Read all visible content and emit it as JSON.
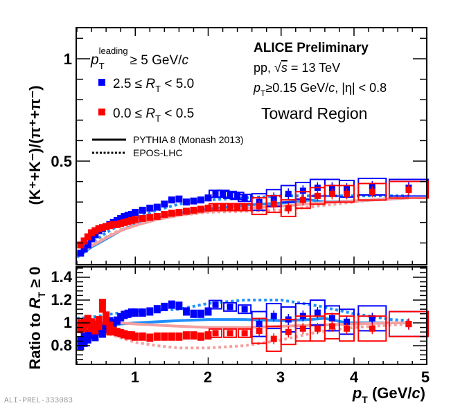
{
  "chart_data": [
    {
      "type": "scatter",
      "panel": "main",
      "xlabel": "p_T (GeV/c)",
      "ylabel": "(K⁺+K⁻)/(π⁺+π⁻)",
      "xlim": [
        0.2,
        5
      ],
      "ylim": [
        0,
        1.15
      ],
      "yticks": [
        0.5,
        1
      ],
      "ytick_labels": [
        "0.5",
        "1"
      ],
      "series": [
        {
          "name": "2.5 ≤ R_T < 5.0",
          "color": "#0000ff",
          "marker": "square",
          "x": [
            0.25,
            0.3,
            0.35,
            0.4,
            0.45,
            0.5,
            0.55,
            0.6,
            0.65,
            0.7,
            0.75,
            0.8,
            0.85,
            0.9,
            0.95,
            1.0,
            1.1,
            1.2,
            1.3,
            1.4,
            1.5,
            1.6,
            1.7,
            1.8,
            1.9,
            2.0,
            2.1,
            2.2,
            2.3,
            2.4,
            2.5,
            2.7,
            2.9,
            3.1,
            3.3,
            3.5,
            3.7,
            3.9,
            4.25,
            4.75
          ],
          "y": [
            0.05,
            0.07,
            0.09,
            0.12,
            0.14,
            0.16,
            0.17,
            0.18,
            0.19,
            0.2,
            0.21,
            0.22,
            0.23,
            0.235,
            0.24,
            0.25,
            0.26,
            0.27,
            0.275,
            0.29,
            0.31,
            0.315,
            0.3,
            0.305,
            0.31,
            0.32,
            0.34,
            0.34,
            0.335,
            0.33,
            0.32,
            0.3,
            0.32,
            0.34,
            0.355,
            0.37,
            0.37,
            0.365,
            0.375,
            0.37
          ]
        },
        {
          "name": "0.0 ≤ R_T < 0.5",
          "color": "#ff0000",
          "marker": "square",
          "x": [
            0.25,
            0.3,
            0.35,
            0.4,
            0.45,
            0.5,
            0.55,
            0.6,
            0.65,
            0.7,
            0.75,
            0.8,
            0.85,
            0.9,
            0.95,
            1.0,
            1.1,
            1.2,
            1.3,
            1.4,
            1.5,
            1.6,
            1.7,
            1.8,
            1.9,
            2.0,
            2.1,
            2.2,
            2.3,
            2.4,
            2.5,
            2.7,
            2.9,
            3.1,
            3.3,
            3.5,
            3.7,
            3.9,
            4.25,
            4.75
          ],
          "y": [
            0.09,
            0.11,
            0.13,
            0.15,
            0.16,
            0.17,
            0.175,
            0.18,
            0.185,
            0.19,
            0.19,
            0.195,
            0.2,
            0.205,
            0.21,
            0.215,
            0.22,
            0.225,
            0.23,
            0.24,
            0.245,
            0.25,
            0.255,
            0.26,
            0.265,
            0.27,
            0.275,
            0.275,
            0.275,
            0.275,
            0.275,
            0.28,
            0.29,
            0.27,
            0.31,
            0.33,
            0.34,
            0.34,
            0.35,
            0.36
          ]
        },
        {
          "name": "PYTHIA 8 (Monash 2013), 2.5 ≤ R_T < 5.0",
          "color": "#1e90ff",
          "style": "solid",
          "x": [
            0.2,
            0.4,
            0.6,
            0.8,
            1.0,
            1.3,
            1.6,
            2.0,
            2.5,
            3.0,
            3.4,
            3.6,
            4.0,
            4.5,
            4.75
          ],
          "y": [
            0.03,
            0.08,
            0.12,
            0.16,
            0.19,
            0.22,
            0.245,
            0.265,
            0.285,
            0.295,
            0.31,
            0.3,
            0.305,
            0.315,
            0.32
          ]
        },
        {
          "name": "PYTHIA 8 (Monash 2013), 0.0 ≤ R_T < 0.5",
          "color": "#f4a0a0",
          "style": "solid",
          "x": [
            0.2,
            0.4,
            0.6,
            0.8,
            1.0,
            1.3,
            1.6,
            2.0,
            2.5,
            3.0,
            3.5,
            4.0,
            4.5,
            4.75
          ],
          "y": [
            0.035,
            0.085,
            0.125,
            0.16,
            0.185,
            0.215,
            0.235,
            0.255,
            0.27,
            0.28,
            0.295,
            0.305,
            0.315,
            0.32
          ]
        },
        {
          "name": "EPOS-LHC, 2.5 ≤ R_T < 5.0",
          "color": "#1e90ff",
          "style": "dotted",
          "x": [
            0.2,
            0.4,
            0.6,
            0.8,
            1.0,
            1.3,
            1.6,
            2.0,
            2.5,
            3.0,
            3.5,
            4.0,
            4.5,
            4.75
          ],
          "y": [
            0.04,
            0.1,
            0.15,
            0.19,
            0.22,
            0.26,
            0.29,
            0.31,
            0.32,
            0.33,
            0.33,
            0.33,
            0.33,
            0.33
          ]
        },
        {
          "name": "EPOS-LHC, 0.0 ≤ R_T < 0.5",
          "color": "#f4a0a0",
          "style": "dotted",
          "x": [
            0.2,
            0.4,
            0.6,
            0.8,
            1.0,
            1.3,
            1.6,
            2.0,
            2.5,
            3.0,
            3.5,
            4.0,
            4.5,
            4.75
          ],
          "y": [
            0.04,
            0.09,
            0.13,
            0.165,
            0.19,
            0.215,
            0.235,
            0.25,
            0.255,
            0.26,
            0.28,
            0.3,
            0.32,
            0.33
          ]
        }
      ]
    },
    {
      "type": "scatter",
      "panel": "ratio",
      "xlabel": "p_T (GeV/c)",
      "ylabel": "Ratio to R_T ≥ 0",
      "xlim": [
        0.2,
        5
      ],
      "ylim": [
        0.63,
        1.5
      ],
      "xticks": [
        1,
        2,
        3,
        4,
        5
      ],
      "xtick_labels": [
        "1",
        "2",
        "3",
        "4",
        "5"
      ],
      "yticks": [
        0.8,
        1,
        1.2,
        1.4
      ],
      "ytick_labels": [
        "0.8",
        "1",
        "1.2",
        "1.4"
      ],
      "series": [
        {
          "name": "2.5 ≤ R_T < 5.0",
          "color": "#0000ff",
          "marker": "square",
          "x": [
            0.25,
            0.3,
            0.35,
            0.4,
            0.45,
            0.5,
            0.55,
            0.6,
            0.65,
            0.7,
            0.75,
            0.8,
            0.85,
            0.9,
            0.95,
            1.0,
            1.1,
            1.2,
            1.3,
            1.4,
            1.5,
            1.6,
            1.7,
            1.8,
            1.9,
            2.0,
            2.1,
            2.3,
            2.5,
            2.7,
            2.9,
            3.1,
            3.3,
            3.5,
            3.7,
            3.9,
            4.25,
            4.75
          ],
          "y": [
            0.82,
            0.85,
            0.88,
            0.92,
            0.9,
            0.95,
            0.93,
            0.97,
            0.99,
            1.0,
            1.02,
            1.05,
            1.07,
            1.08,
            1.09,
            1.09,
            1.09,
            1.1,
            1.12,
            1.14,
            1.16,
            1.15,
            1.1,
            1.08,
            1.08,
            1.1,
            1.16,
            1.14,
            1.12,
            0.99,
            1.06,
            1.03,
            1.06,
            1.09,
            1.04,
            1.01,
            1.04,
            0.99
          ]
        },
        {
          "name": "0.0 ≤ R_T < 0.5",
          "color": "#ff0000",
          "marker": "square",
          "x": [
            0.25,
            0.3,
            0.35,
            0.4,
            0.45,
            0.5,
            0.55,
            0.6,
            0.65,
            0.7,
            0.75,
            0.8,
            0.85,
            0.9,
            0.95,
            1.0,
            1.1,
            1.2,
            1.3,
            1.4,
            1.5,
            1.6,
            1.7,
            1.8,
            1.9,
            2.0,
            2.1,
            2.3,
            2.5,
            2.7,
            2.9,
            3.1,
            3.3,
            3.5,
            3.7,
            3.9,
            4.25,
            4.75
          ],
          "y": [
            0.97,
            0.98,
            1.01,
            0.98,
            0.96,
            1.0,
            1.15,
            1.04,
            0.95,
            0.93,
            0.92,
            0.91,
            0.9,
            0.89,
            0.89,
            0.88,
            0.88,
            0.87,
            0.88,
            0.88,
            0.88,
            0.88,
            0.89,
            0.89,
            0.88,
            0.89,
            0.91,
            0.91,
            0.91,
            0.93,
            0.86,
            0.92,
            0.95,
            0.95,
            0.97,
            0.95,
            0.95,
            0.99
          ]
        },
        {
          "name": "PYTHIA 8, 2.5 ≤ R_T < 5.0",
          "color": "#1e90ff",
          "style": "solid",
          "x": [
            0.2,
            0.4,
            0.6,
            0.8,
            1.0,
            1.3,
            1.6,
            2.0,
            2.5,
            3.0,
            3.4,
            3.6,
            3.9,
            4.5,
            4.75
          ],
          "y": [
            0.95,
            0.95,
            0.97,
            0.99,
            1.0,
            1.01,
            1.02,
            1.03,
            1.03,
            1.02,
            1.03,
            1.04,
            1.0,
            1.0,
            1.0
          ]
        },
        {
          "name": "PYTHIA 8, 0.0 ≤ R_T < 0.5",
          "color": "#f4a0a0",
          "style": "solid",
          "x": [
            0.2,
            0.4,
            0.6,
            0.8,
            1.0,
            1.3,
            1.6,
            2.0,
            2.5,
            3.0,
            3.5,
            4.0,
            4.5,
            4.75
          ],
          "y": [
            0.98,
            0.99,
            1.0,
            1.0,
            0.99,
            0.98,
            0.97,
            0.96,
            0.96,
            0.97,
            0.98,
            0.99,
            1.0,
            1.0
          ]
        },
        {
          "name": "EPOS-LHC, 2.5 ≤ R_T < 5.0",
          "color": "#1e90ff",
          "style": "dotted",
          "x": [
            0.2,
            0.4,
            0.6,
            0.8,
            1.0,
            1.3,
            1.6,
            2.0,
            2.5,
            3.0,
            3.5,
            4.0,
            4.5,
            4.75
          ],
          "y": [
            1.04,
            1.05,
            1.07,
            1.09,
            1.1,
            1.11,
            1.12,
            1.17,
            1.2,
            1.2,
            1.15,
            1.08,
            1.03,
            1.02
          ]
        },
        {
          "name": "EPOS-LHC, 0.0 ≤ R_T < 0.5",
          "color": "#f4a0a0",
          "style": "dotted",
          "x": [
            0.2,
            0.4,
            0.6,
            0.8,
            1.0,
            1.3,
            1.6,
            2.0,
            2.5,
            3.0,
            3.5,
            4.0,
            4.5,
            4.75
          ],
          "y": [
            0.97,
            0.94,
            0.91,
            0.87,
            0.83,
            0.8,
            0.78,
            0.78,
            0.8,
            0.85,
            0.92,
            0.96,
            0.98,
            0.99
          ]
        }
      ]
    }
  ],
  "legend": {
    "selection": "p_T^leading ≥ 5 GeV/c",
    "selection_main": "p",
    "selection_sub": "T",
    "selection_sup": "leading",
    "selection_rest": "≥ 5 GeV/",
    "selection_c": "c",
    "entries": [
      {
        "pre": "2.5 ≤ ",
        "var": "R",
        "sub": "T",
        "post": " < 5.0",
        "color": "#0000ff"
      },
      {
        "pre": "0.0 ≤ ",
        "var": "R",
        "sub": "T",
        "post": " < 0.5",
        "color": "#ff0000"
      }
    ],
    "models": [
      {
        "label": "PYTHIA 8 (Monash 2013)",
        "style": "solid"
      },
      {
        "label": "EPOS-LHC",
        "style": "dotted"
      }
    ]
  },
  "info": {
    "experiment": "ALICE Preliminary",
    "system_pre": "pp, ",
    "system_sqrt": "√",
    "system_s": "s",
    "system_post": " = 13 TeV",
    "cut_p": "p",
    "cut_sub": "T",
    "cut_rest": "≥0.15 GeV/",
    "cut_c": "c",
    "cut_eta": ", |η| < 0.8",
    "region": "Toward Region"
  },
  "axes": {
    "main_ylabel": "(K⁺+K⁻)/(π⁺+π⁻)",
    "ratio_ylabel_pre": "Ratio to ",
    "ratio_ylabel_var": "R",
    "ratio_ylabel_sub": "T",
    "ratio_ylabel_post": " ≥ 0",
    "xlabel_p": "p",
    "xlabel_sub": "T",
    "xlabel_rest": " (GeV/",
    "xlabel_c": "c",
    "xlabel_close": ")"
  },
  "footer": {
    "id": "ALI-PREL-333083"
  }
}
